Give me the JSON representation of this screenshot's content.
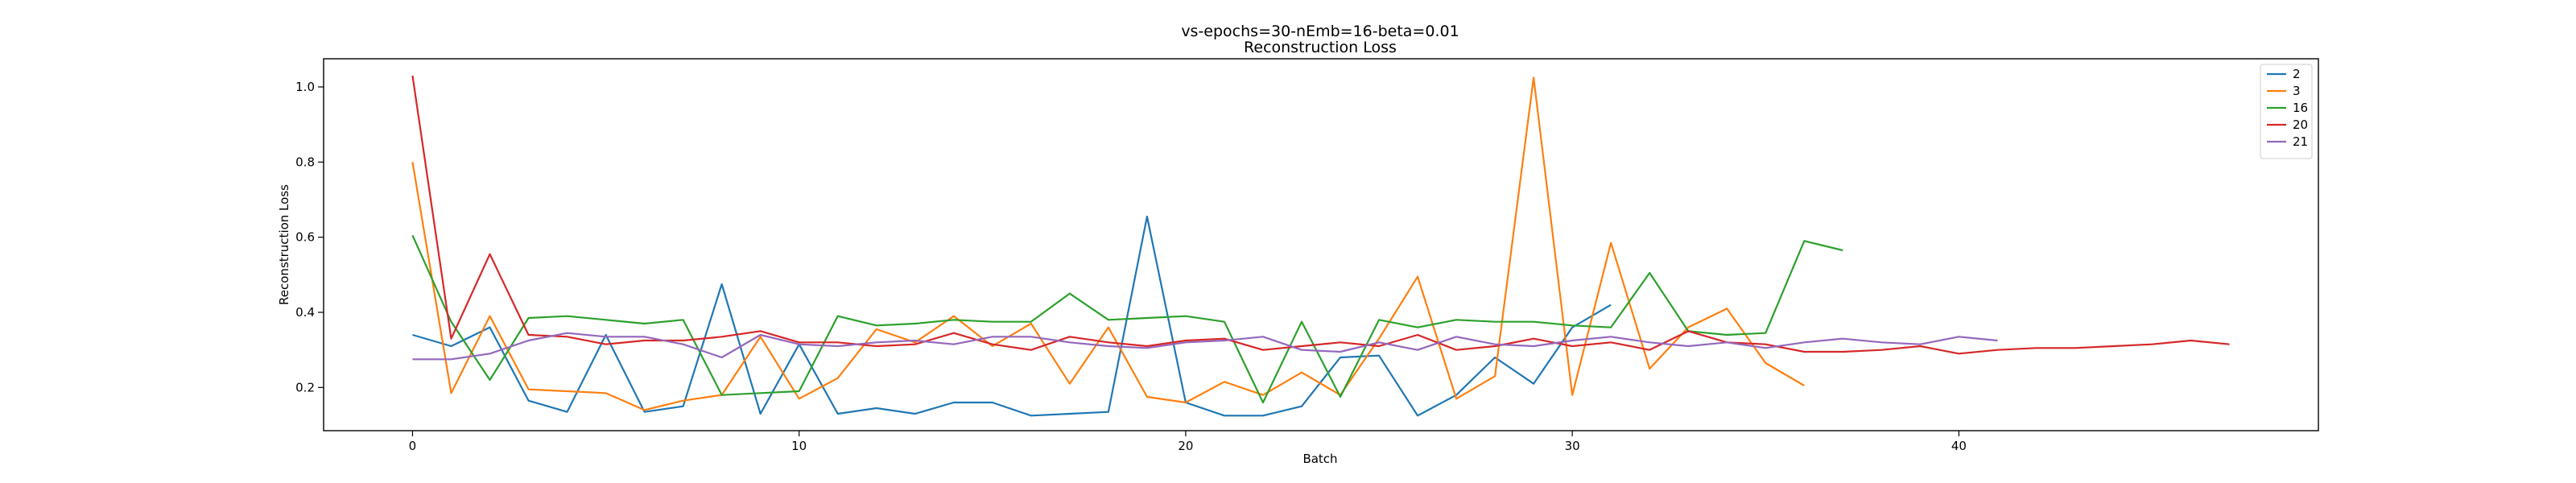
{
  "chart_data": {
    "type": "line",
    "title": "vs-epochs=30-nEmb=16-beta=0.01",
    "subtitle": "Reconstruction Loss",
    "xlabel": "Batch",
    "ylabel": "Reconstruction Loss",
    "xlim": [
      -2.3,
      49.3
    ],
    "ylim": [
      0.085,
      1.075
    ],
    "xticks": [
      0,
      10,
      20,
      30,
      40
    ],
    "yticks": [
      0.2,
      0.4,
      0.6,
      0.8,
      1.0
    ],
    "xtick_labels": [
      "0",
      "10",
      "20",
      "30",
      "40"
    ],
    "ytick_labels": [
      "0.2",
      "0.4",
      "0.6",
      "0.8",
      "1.0"
    ],
    "grid": false,
    "legend_position": "top-right",
    "series": [
      {
        "name": "2",
        "color": "#1f77b4",
        "values": [
          0.34,
          0.31,
          0.36,
          0.165,
          0.135,
          0.34,
          0.135,
          0.15,
          0.475,
          0.13,
          0.315,
          0.13,
          0.145,
          0.13,
          0.16,
          0.16,
          0.125,
          0.13,
          0.135,
          0.655,
          0.16,
          0.125,
          0.125,
          0.15,
          0.28,
          0.285,
          0.125,
          0.18,
          0.28,
          0.21,
          0.36,
          0.42
        ]
      },
      {
        "name": "3",
        "color": "#ff7f0e",
        "values": [
          0.8,
          0.185,
          0.39,
          0.195,
          0.19,
          0.185,
          0.14,
          0.165,
          0.18,
          0.335,
          0.17,
          0.225,
          0.355,
          0.32,
          0.39,
          0.31,
          0.37,
          0.21,
          0.36,
          0.175,
          0.16,
          0.215,
          0.18,
          0.24,
          0.18,
          0.33,
          0.495,
          0.17,
          0.23,
          1.025,
          0.18,
          0.585,
          0.25,
          0.36,
          0.41,
          0.265,
          0.205
        ]
      },
      {
        "name": "16",
        "color": "#2ca02c",
        "values": [
          0.605,
          0.375,
          0.22,
          0.385,
          0.39,
          0.38,
          0.37,
          0.38,
          0.18,
          0.185,
          0.19,
          0.39,
          0.365,
          0.37,
          0.38,
          0.375,
          0.375,
          0.45,
          0.38,
          0.385,
          0.39,
          0.375,
          0.16,
          0.375,
          0.175,
          0.38,
          0.36,
          0.38,
          0.375,
          0.375,
          0.365,
          0.36,
          0.505,
          0.35,
          0.34,
          0.345,
          0.59,
          0.565
        ]
      },
      {
        "name": "20",
        "color": "#d62728",
        "values": [
          1.03,
          0.33,
          0.555,
          0.34,
          0.335,
          0.315,
          0.325,
          0.325,
          0.335,
          0.35,
          0.32,
          0.32,
          0.31,
          0.315,
          0.345,
          0.315,
          0.3,
          0.335,
          0.32,
          0.31,
          0.325,
          0.33,
          0.3,
          0.31,
          0.32,
          0.31,
          0.34,
          0.3,
          0.31,
          0.33,
          0.31,
          0.32,
          0.3,
          0.35,
          0.32,
          0.315,
          0.295,
          0.295,
          0.3,
          0.31,
          0.29,
          0.3,
          0.305,
          0.305,
          0.31,
          0.315,
          0.325,
          0.315
        ]
      },
      {
        "name": "21",
        "color": "#9467bd",
        "values": [
          0.275,
          0.275,
          0.29,
          0.325,
          0.345,
          0.335,
          0.335,
          0.315,
          0.28,
          0.34,
          0.315,
          0.31,
          0.32,
          0.325,
          0.315,
          0.335,
          0.335,
          0.32,
          0.31,
          0.305,
          0.32,
          0.325,
          0.335,
          0.3,
          0.295,
          0.32,
          0.3,
          0.335,
          0.315,
          0.31,
          0.325,
          0.335,
          0.32,
          0.31,
          0.32,
          0.305,
          0.32,
          0.33,
          0.32,
          0.315,
          0.335,
          0.325
        ]
      }
    ]
  }
}
